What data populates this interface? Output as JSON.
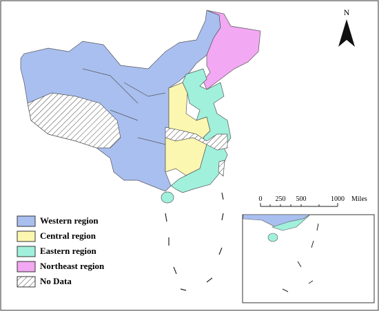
{
  "north_label": "N",
  "scale": {
    "ticks": [
      "0",
      "250",
      "500",
      "1000"
    ],
    "unit": "Miles"
  },
  "legend": [
    {
      "label": "Western region",
      "color": "#a9bff0"
    },
    {
      "label": "Central region",
      "color": "#fbf7b0"
    },
    {
      "label": "Eastern region",
      "color": "#a0f0dc"
    },
    {
      "label": "Northeast region",
      "color": "#f2a8f2"
    },
    {
      "label": "No Data",
      "color": "hatch"
    }
  ]
}
